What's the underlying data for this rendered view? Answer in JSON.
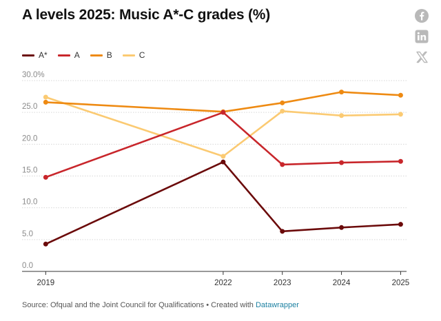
{
  "header": {
    "title": "A levels 2025: Music A*-C grades (%)"
  },
  "share": {
    "icons": [
      "facebook-icon",
      "linkedin-icon",
      "x-icon"
    ],
    "color": "#b9b9b9"
  },
  "footer": {
    "source": "Source: Ofqual and the Joint Council for Qualifications",
    "separator": "•",
    "created_with": "Created with",
    "link_text": "Datawrapper",
    "link_color": "#1d81a2"
  },
  "chart_data": {
    "type": "line",
    "title": "A levels 2025: Music A*-C grades (%)",
    "x": [
      2019,
      2022,
      2023,
      2024,
      2025
    ],
    "x_tick_labels": [
      "2019",
      "2022",
      "2023",
      "2024",
      "2025"
    ],
    "y_tick_labels": [
      "0.0",
      "5.0",
      "10.0",
      "15.0",
      "20.0",
      "25.0",
      "30.0%"
    ],
    "y_ticks": [
      0,
      5,
      10,
      15,
      20,
      25,
      30
    ],
    "ylim": [
      0,
      30
    ],
    "xlim": [
      2018.6,
      2025.1
    ],
    "grid": "horizontal-dashed",
    "legend_position": "top-left",
    "series": [
      {
        "name": "A*",
        "color": "#6b0a0a",
        "values": [
          4.3,
          17.2,
          6.3,
          6.9,
          7.4
        ]
      },
      {
        "name": "A",
        "color": "#c8262b",
        "values": [
          14.8,
          25.0,
          16.8,
          17.1,
          17.3
        ]
      },
      {
        "name": "B",
        "color": "#ee8a12",
        "values": [
          26.6,
          25.1,
          26.5,
          28.2,
          27.7
        ]
      },
      {
        "name": "C",
        "color": "#fbca72",
        "values": [
          27.4,
          18.1,
          25.2,
          24.5,
          24.7
        ]
      }
    ]
  }
}
